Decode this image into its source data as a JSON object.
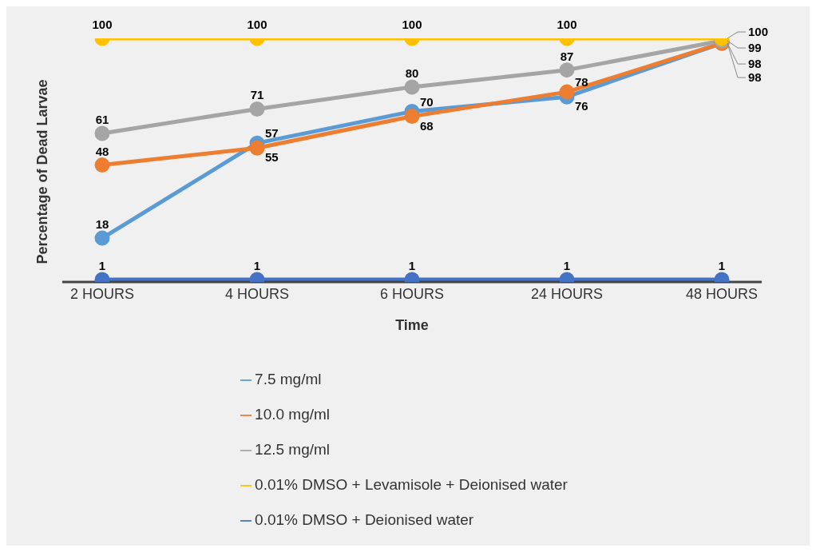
{
  "chart_data": {
    "type": "line",
    "xlabel": "Time",
    "ylabel": "Percentage  of Dead Larvae",
    "categories": [
      "2 HOURS",
      "4 HOURS",
      "6 HOURS",
      "24 HOURS",
      "48 HOURS"
    ],
    "series": [
      {
        "name": "7.5 mg/ml",
        "color": "#5b9bd5",
        "values": [
          18,
          57,
          70,
          76,
          98
        ]
      },
      {
        "name": "10.0 mg/ml",
        "color": "#ed7d31",
        "values": [
          48,
          55,
          68,
          78,
          98
        ]
      },
      {
        "name": "12.5 mg/ml",
        "color": "#a5a5a5",
        "values": [
          61,
          71,
          80,
          87,
          99
        ]
      },
      {
        "name": "0.01% DMSO + Levamisole + Deionised water",
        "color": "#ffc000",
        "values": [
          100,
          100,
          100,
          100,
          100
        ]
      },
      {
        "name": "0.01% DMSO + Deionised water",
        "color": "#4472c4",
        "values": [
          1,
          1,
          1,
          1,
          1
        ]
      }
    ],
    "tick_labels": "x",
    "legend": "bottom",
    "marker": "circle",
    "line_style": "solid",
    "data_labels": true
  }
}
